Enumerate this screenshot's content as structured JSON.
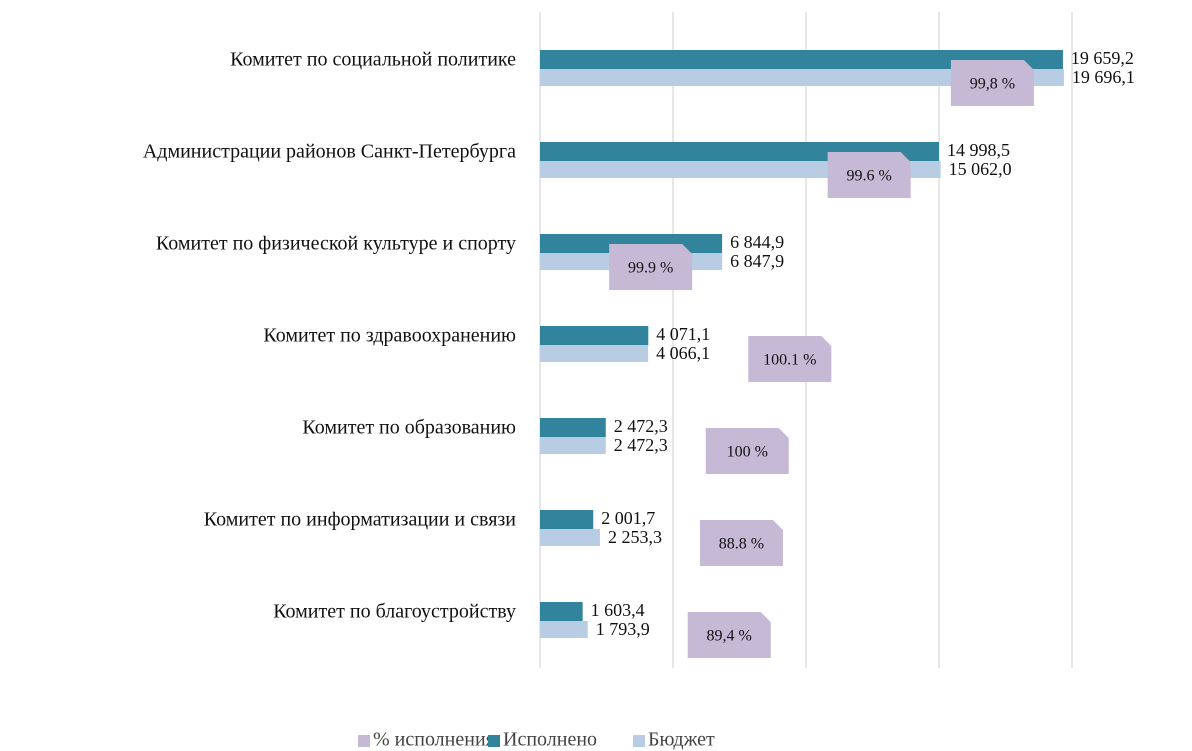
{
  "chart_data": {
    "type": "hbar",
    "categories": [
      "Комитет по социальной политике",
      "Администрации районов Санкт-Петербурга",
      "Комитет по физической культуре и спорту",
      "Комитет по здравоохранению",
      "Комитет по образованию",
      "Комитет по информатизации и связи",
      "Комитет по благоустройству"
    ],
    "series": [
      {
        "name": "% исполнения",
        "color": "#c6b9d6",
        "values": [
          99.8,
          99.6,
          99.9,
          100.1,
          100,
          88.8,
          89.4
        ],
        "value_labels": [
          "99,8 %",
          "99.6 %",
          "99.9 %",
          "100.1 %",
          "100 %",
          "88.8 %",
          "89,4 %"
        ]
      },
      {
        "name": "Исполнено",
        "color": "#31849b",
        "values": [
          19659.2,
          14998.5,
          6844.9,
          4071.1,
          2472.3,
          2001.7,
          1603.4
        ],
        "value_labels": [
          "19 659,2",
          "14 998,5",
          "6 844,9",
          "4 071,1",
          "2 472,3",
          "2 001,7",
          "1 603,4"
        ]
      },
      {
        "name": "Бюджет",
        "color": "#b8cce4",
        "values": [
          19696.1,
          15062.0,
          6847.9,
          4066.1,
          2472.3,
          2253.3,
          1793.9
        ],
        "value_labels": [
          "19 696,1",
          "15 062,0",
          "6 847,9",
          "4 066,1",
          "2 472,3",
          "2 253,3",
          "1 793,9"
        ]
      }
    ],
    "xlim": [
      0,
      20000
    ],
    "xticks": [
      0,
      5000,
      10000,
      15000,
      20000
    ],
    "grid": true,
    "legend": "bottom"
  }
}
